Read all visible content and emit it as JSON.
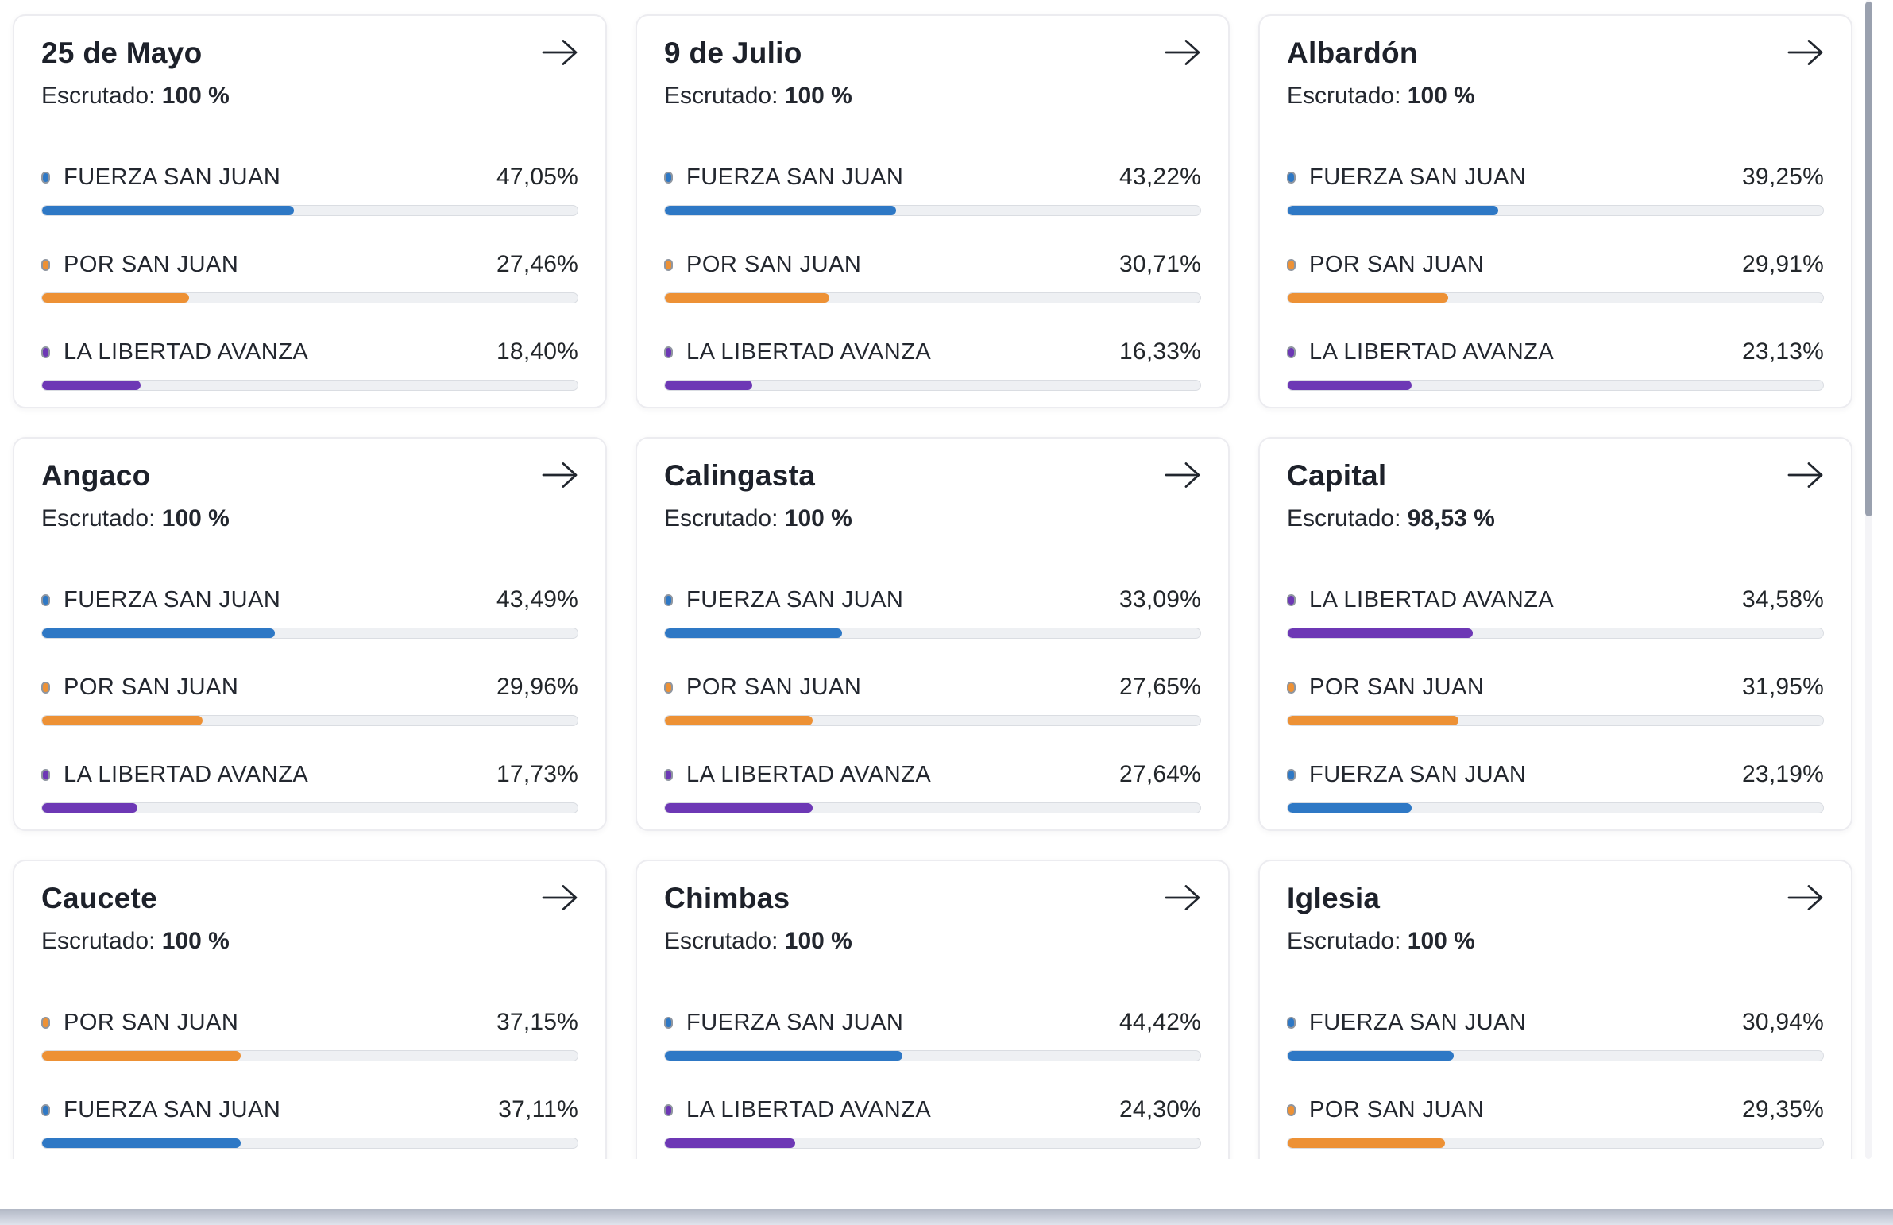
{
  "labels": {
    "escrutado": "Escrutado:"
  },
  "colors": {
    "blue": "#2e78c5",
    "orange": "#ed9135",
    "purple": "#6d38b5",
    "dot_border": "#8f96a0",
    "bar_track": "#eef0f3",
    "title_text": "#1d212a",
    "scroll_thumb": "#9aa1af",
    "footer_band_top": "#b2b8c5",
    "footer_band_bottom": "#dfe3ec"
  },
  "icons": {
    "card_arrow": "right-arrow-icon"
  },
  "cards": [
    {
      "title": "25 de Mayo",
      "escrutado": "100 %",
      "results": [
        {
          "party": "FUERZA SAN JUAN",
          "color": "blue",
          "value": "47,05%",
          "pct": 47.05
        },
        {
          "party": "POR SAN JUAN",
          "color": "orange",
          "value": "27,46%",
          "pct": 27.46
        },
        {
          "party": "LA LIBERTAD AVANZA",
          "color": "purple",
          "value": "18,40%",
          "pct": 18.4
        }
      ]
    },
    {
      "title": "9 de Julio",
      "escrutado": "100 %",
      "results": [
        {
          "party": "FUERZA SAN JUAN",
          "color": "blue",
          "value": "43,22%",
          "pct": 43.22
        },
        {
          "party": "POR SAN JUAN",
          "color": "orange",
          "value": "30,71%",
          "pct": 30.71
        },
        {
          "party": "LA LIBERTAD AVANZA",
          "color": "purple",
          "value": "16,33%",
          "pct": 16.33
        }
      ]
    },
    {
      "title": "Albardón",
      "escrutado": "100 %",
      "results": [
        {
          "party": "FUERZA SAN JUAN",
          "color": "blue",
          "value": "39,25%",
          "pct": 39.25
        },
        {
          "party": "POR SAN JUAN",
          "color": "orange",
          "value": "29,91%",
          "pct": 29.91
        },
        {
          "party": "LA LIBERTAD AVANZA",
          "color": "purple",
          "value": "23,13%",
          "pct": 23.13
        }
      ]
    },
    {
      "title": "Angaco",
      "escrutado": "100 %",
      "results": [
        {
          "party": "FUERZA SAN JUAN",
          "color": "blue",
          "value": "43,49%",
          "pct": 43.49
        },
        {
          "party": "POR SAN JUAN",
          "color": "orange",
          "value": "29,96%",
          "pct": 29.96
        },
        {
          "party": "LA LIBERTAD AVANZA",
          "color": "purple",
          "value": "17,73%",
          "pct": 17.73
        }
      ]
    },
    {
      "title": "Calingasta",
      "escrutado": "100 %",
      "results": [
        {
          "party": "FUERZA SAN JUAN",
          "color": "blue",
          "value": "33,09%",
          "pct": 33.09
        },
        {
          "party": "POR SAN JUAN",
          "color": "orange",
          "value": "27,65%",
          "pct": 27.65
        },
        {
          "party": "LA LIBERTAD AVANZA",
          "color": "purple",
          "value": "27,64%",
          "pct": 27.64
        }
      ]
    },
    {
      "title": "Capital",
      "escrutado": "98,53 %",
      "results": [
        {
          "party": "LA LIBERTAD AVANZA",
          "color": "purple",
          "value": "34,58%",
          "pct": 34.58
        },
        {
          "party": "POR SAN JUAN",
          "color": "orange",
          "value": "31,95%",
          "pct": 31.95
        },
        {
          "party": "FUERZA SAN JUAN",
          "color": "blue",
          "value": "23,19%",
          "pct": 23.19
        }
      ]
    },
    {
      "title": "Caucete",
      "escrutado": "100 %",
      "results": [
        {
          "party": "POR SAN JUAN",
          "color": "orange",
          "value": "37,15%",
          "pct": 37.15
        },
        {
          "party": "FUERZA SAN JUAN",
          "color": "blue",
          "value": "37,11%",
          "pct": 37.11
        }
      ]
    },
    {
      "title": "Chimbas",
      "escrutado": "100 %",
      "results": [
        {
          "party": "FUERZA SAN JUAN",
          "color": "blue",
          "value": "44,42%",
          "pct": 44.42
        },
        {
          "party": "LA LIBERTAD AVANZA",
          "color": "purple",
          "value": "24,30%",
          "pct": 24.3
        }
      ]
    },
    {
      "title": "Iglesia",
      "escrutado": "100 %",
      "results": [
        {
          "party": "FUERZA SAN JUAN",
          "color": "blue",
          "value": "30,94%",
          "pct": 30.94
        },
        {
          "party": "POR SAN JUAN",
          "color": "orange",
          "value": "29,35%",
          "pct": 29.35
        }
      ]
    }
  ]
}
